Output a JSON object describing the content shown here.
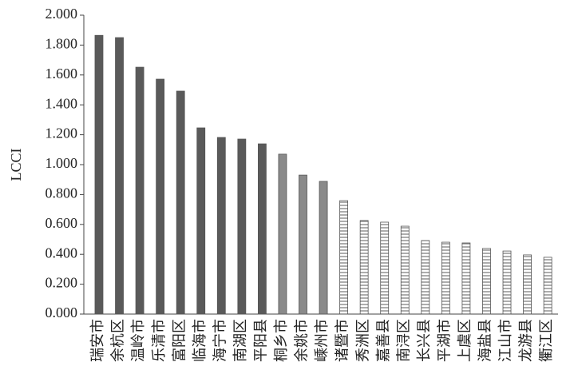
{
  "chart_data": {
    "type": "bar",
    "ylabel": "LCCI",
    "categories": [
      "瑞安市",
      "余杭区",
      "温岭市",
      "乐清市",
      "富阳区",
      "临海市",
      "海宁市",
      "南湖区",
      "平阳县",
      "桐乡市",
      "余姚市",
      "嵊州市",
      "诸暨市",
      "秀洲区",
      "嘉善县",
      "南浔区",
      "长兴县",
      "平湖市",
      "上虞区",
      "海盐县",
      "江山市",
      "龙游县",
      "衢江区"
    ],
    "values": [
      1.865,
      1.85,
      1.652,
      1.572,
      1.492,
      1.246,
      1.182,
      1.171,
      1.139,
      1.07,
      0.93,
      0.888,
      0.759,
      0.626,
      0.615,
      0.588,
      0.492,
      0.481,
      0.476,
      0.439,
      0.422,
      0.396,
      0.38
    ],
    "colors": [
      "#5a5a5a",
      "#5a5a5a",
      "#5a5a5a",
      "#5a5a5a",
      "#5a5a5a",
      "#5a5a5a",
      "#5a5a5a",
      "#5a5a5a",
      "#5a5a5a",
      "#8a8a8a",
      "#8a8a8a",
      "#8a8a8a",
      "hatch",
      "hatch",
      "hatch",
      "hatch",
      "hatch",
      "hatch",
      "hatch",
      "hatch",
      "hatch",
      "hatch",
      "hatch"
    ],
    "ylim": [
      0,
      2
    ],
    "yticks": [
      {
        "value": 0,
        "label": "0.000"
      },
      {
        "value": 0.2,
        "label": "0.200"
      },
      {
        "value": 0.4,
        "label": "0.400"
      },
      {
        "value": 0.6,
        "label": "0.600"
      },
      {
        "value": 0.8,
        "label": "0.800"
      },
      {
        "value": 1,
        "label": "1.000"
      },
      {
        "value": 1.2,
        "label": "1.200"
      },
      {
        "value": 1.4,
        "label": "1.400"
      },
      {
        "value": 1.6,
        "label": "1.600"
      },
      {
        "value": 1.8,
        "label": "1.800"
      },
      {
        "value": 2,
        "label": "2.000"
      }
    ],
    "grid": false
  }
}
